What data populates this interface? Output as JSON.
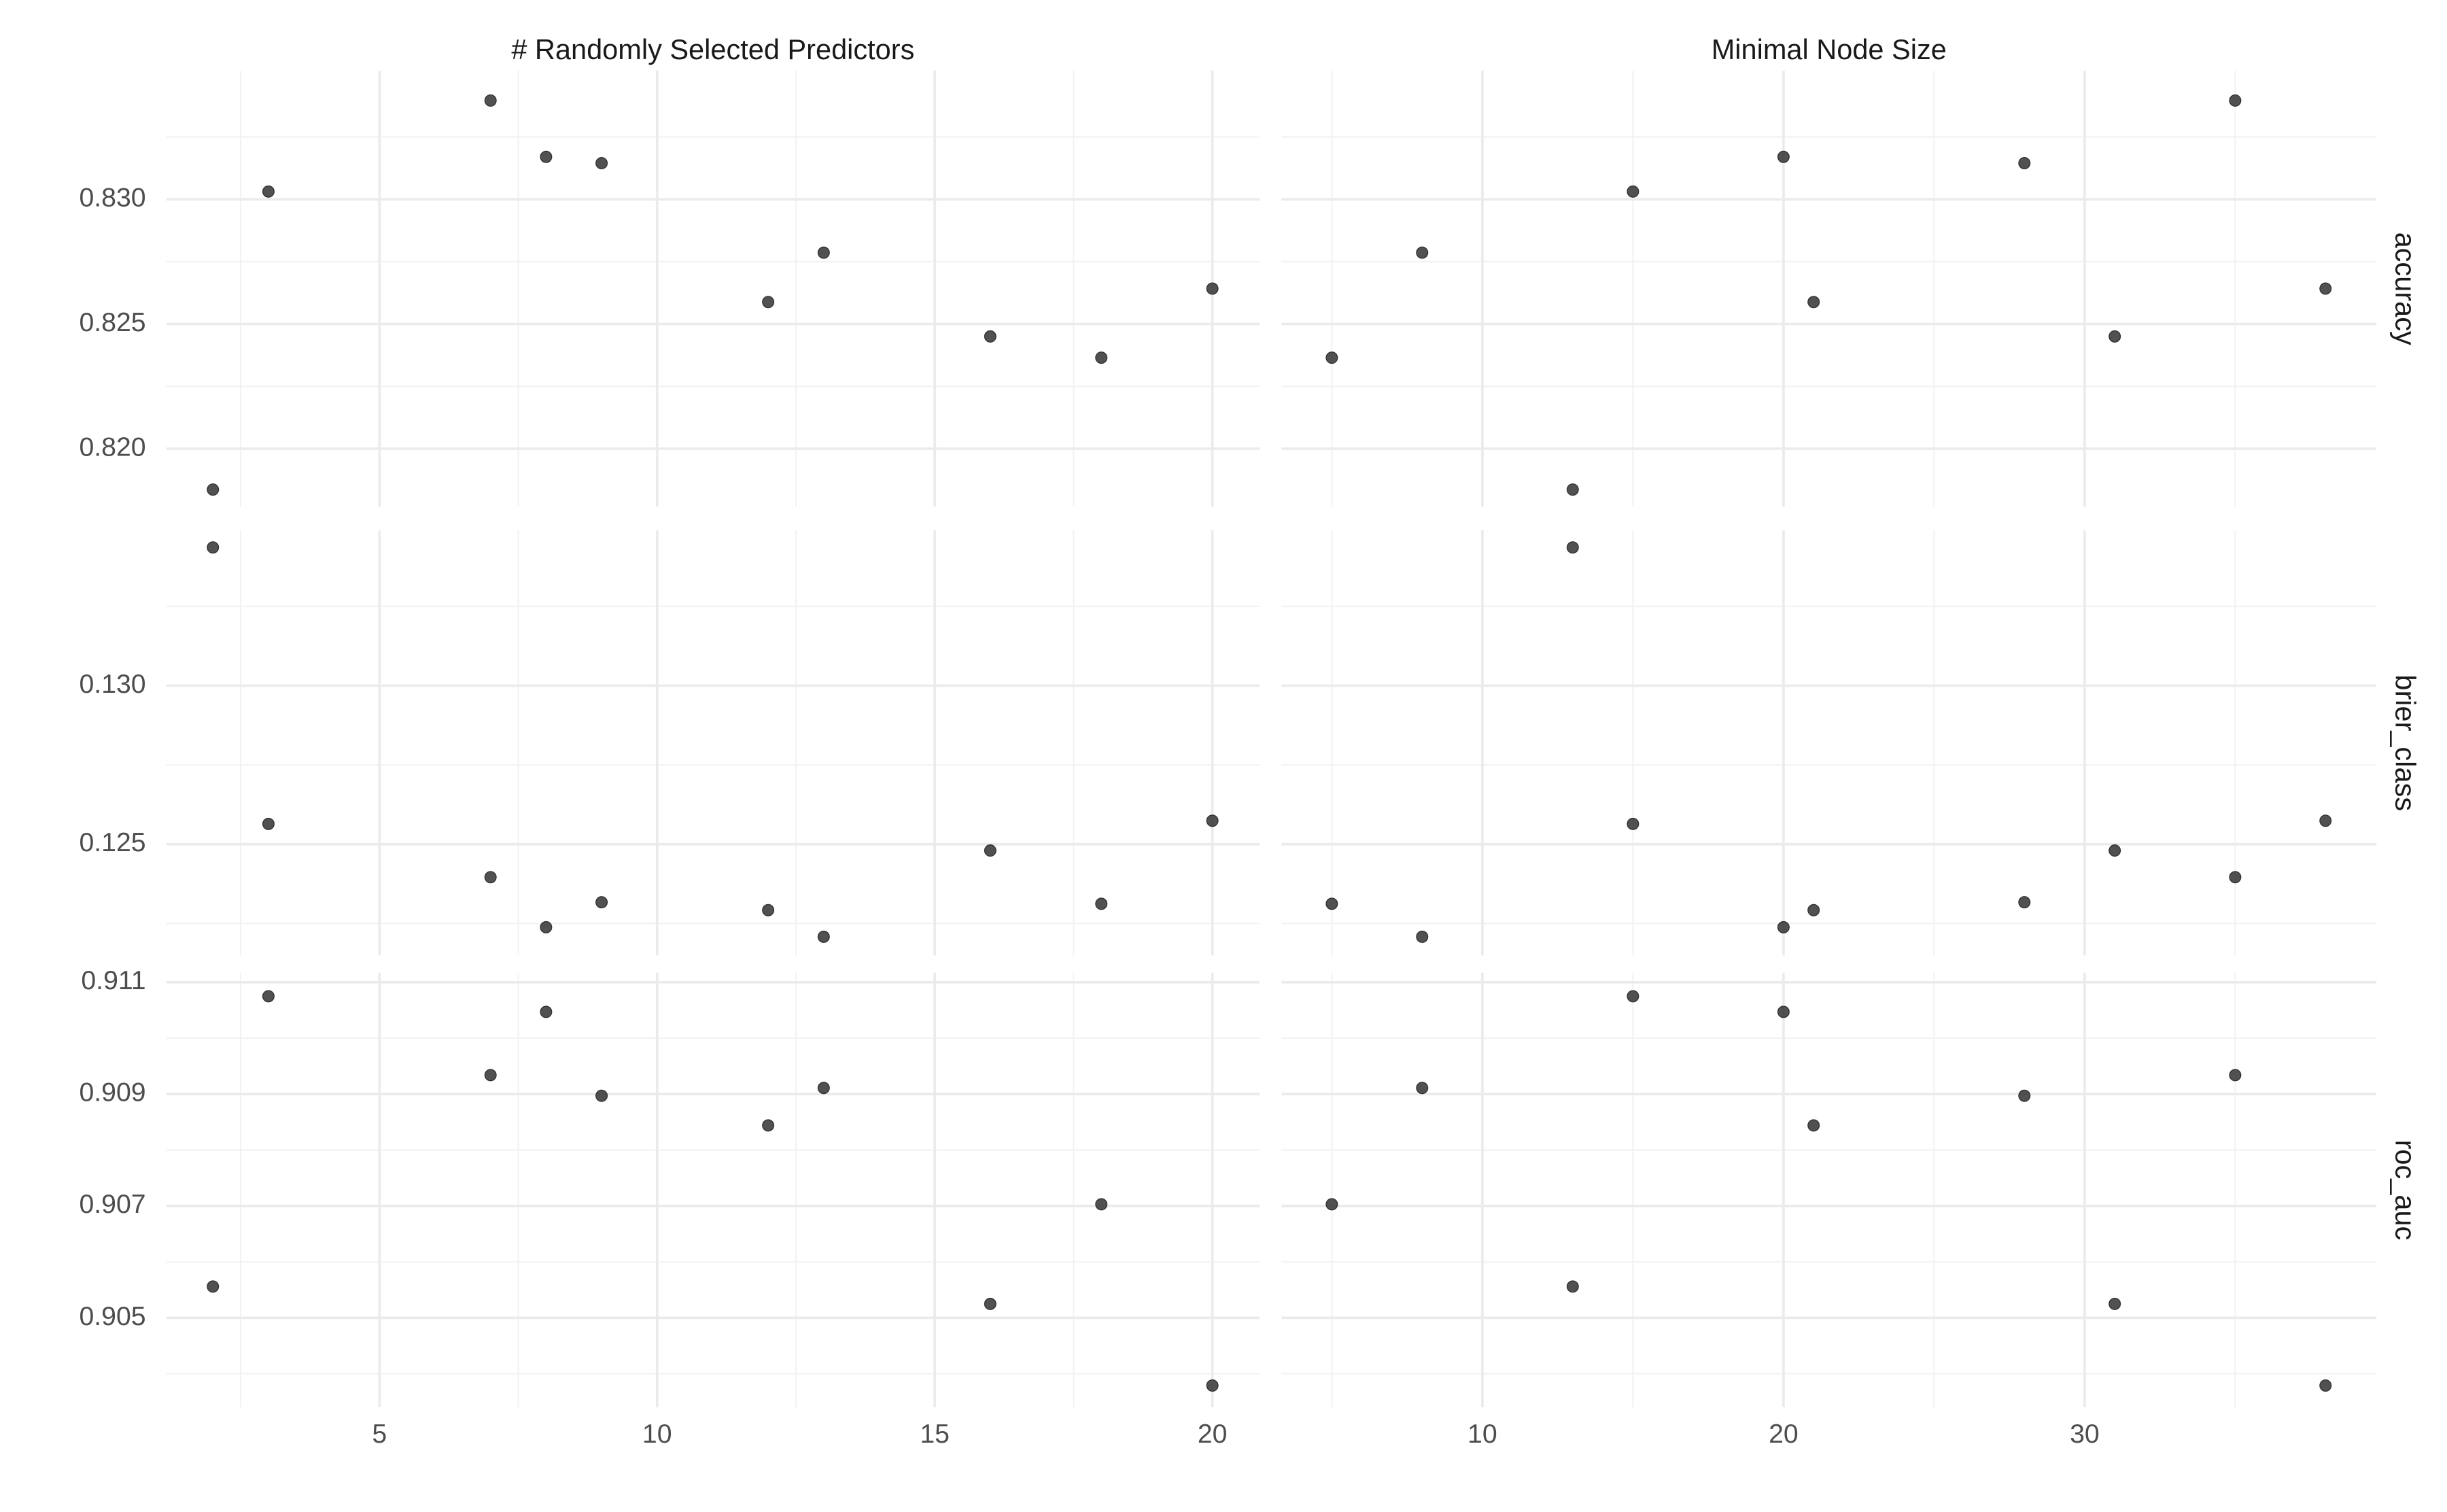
{
  "chart_data": {
    "type": "scatter",
    "color": "#333333",
    "grid": true,
    "columns": [
      {
        "title": "# Randomly Selected Predictors",
        "x": [
          2,
          3,
          7,
          8,
          9,
          12,
          13,
          16,
          18,
          20
        ],
        "xlim": [
          1.16,
          20.85
        ],
        "xticks": [
          5,
          10,
          15,
          20
        ]
      },
      {
        "title": "Minimal Node Size",
        "x": [
          13,
          15,
          35,
          20,
          28,
          21,
          8,
          31,
          5,
          38
        ],
        "xlim": [
          3.33,
          39.69
        ],
        "xticks": [
          10,
          20,
          30
        ]
      }
    ],
    "rows": [
      {
        "label": "accuracy",
        "values": [
          0.81836,
          0.83031,
          0.83396,
          0.8317,
          0.83145,
          0.82588,
          0.82786,
          0.8245,
          0.82365,
          0.82642
        ],
        "ylim": [
          0.81767,
          0.83516
        ],
        "yticks": [
          {
            "value": 0.82,
            "label": "0.820"
          },
          0.825,
          {
            "value": 0.83,
            "label": "0.830"
          }
        ]
      },
      {
        "label": "brier_class",
        "values": [
          0.13436,
          0.12564,
          0.12396,
          0.12238,
          0.12317,
          0.12292,
          0.12208,
          0.1248,
          0.12312,
          0.12574
        ],
        "ylim": [
          0.12149,
          0.1349
        ],
        "yticks": [
          0.125,
          {
            "value": 0.13,
            "label": "0.130"
          }
        ]
      },
      {
        "label": "roc_auc",
        "values": [
          0.90556,
          0.91075,
          0.90934,
          0.91047,
          0.90897,
          0.90844,
          0.90911,
          0.90525,
          0.90703,
          0.90379
        ],
        "ylim": [
          0.9034,
          0.91117
        ],
        "yticks": [
          0.905,
          0.907,
          0.909,
          0.911
        ]
      }
    ]
  }
}
